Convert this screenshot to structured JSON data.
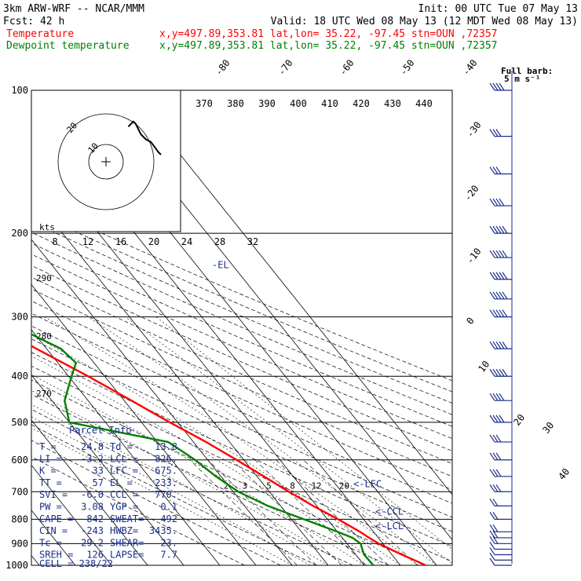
{
  "header": {
    "line1_left": "3km ARW-WRF -- NCAR/MMM",
    "line1_right": "Init: 00 UTC Tue 07 May 13",
    "line2_left": "Fcst:   42 h",
    "line2_right": "Valid: 18 UTC Wed 08 May 13 (12 MDT Wed 08 May 13)",
    "legend": [
      {
        "name": "Temperature",
        "info": "x,y=497.89,353.81   lat,lon= 35.22, -97.45  stn=OUN ,72357",
        "color": "#ff0000"
      },
      {
        "name": "Dewpoint temperature",
        "info": "x,y=497.89,353.81   lat,lon= 35.22, -97.45  stn=OUN ,72357",
        "color": "#008000"
      }
    ]
  },
  "barb_key": {
    "title": "Full barb:",
    "value": "5 m s⁻¹"
  },
  "hodograph": {
    "units_label": "kts",
    "ring_labels": [
      "20",
      "10"
    ]
  },
  "parcel_info": {
    "title": "Parcel Info",
    "rows": [
      [
        "T =",
        "24.8",
        "Td =",
        "13.8"
      ],
      [
        "LI =",
        "-3.2",
        "LCL =",
        "826."
      ],
      [
        "K =",
        "33",
        "LFC =",
        "675."
      ],
      [
        "TT =",
        "57",
        "EL =",
        "233."
      ],
      [
        "SVI =",
        "-6.0",
        "CCL =",
        "770."
      ],
      [
        "PW =",
        "3.08",
        "YGP =",
        "0.1"
      ],
      [
        "CAPE =",
        "842",
        "SWEAT=",
        "492"
      ],
      [
        "CIN =",
        "-243",
        "HWBZ=",
        "3435."
      ],
      [
        "Tc =",
        "29.2",
        "SHEAR=",
        "23."
      ],
      [
        "SREH =",
        "126",
        "LAPSE=",
        "7.7"
      ]
    ],
    "cell": "CELL = 238/22"
  },
  "level_markers": [
    {
      "label": "-EL",
      "p": 233
    },
    {
      "label": "<-LFC",
      "p": 675
    },
    {
      "label": "<-CCL",
      "p": 770
    },
    {
      "label": "<-LCL",
      "p": 826
    }
  ],
  "colors": {
    "temperature": "#ff0000",
    "dewpoint": "#008000",
    "panel": "#1a2e8a",
    "dry_adiabat": "#000000",
    "isotherm": "#000000"
  },
  "chart_data": {
    "type": "line",
    "title": "",
    "pressure_levels": [
      "100",
      "200",
      "300",
      "400",
      "500",
      "600",
      "700",
      "800",
      "900",
      "1000"
    ],
    "isotherm_labels": [
      "-80",
      "-70",
      "-60",
      "-50",
      "-40",
      "-30",
      "-20",
      "-10",
      "0",
      "10",
      "20",
      "30",
      "40"
    ],
    "theta_labels_top": [
      "370",
      "380",
      "390",
      "400",
      "410",
      "420",
      "430",
      "440"
    ],
    "theta_labels_left": [
      "290",
      "280",
      "270"
    ],
    "mixing_ratio_labels": [
      "2",
      "3",
      "5",
      "8",
      "12",
      "20"
    ],
    "hodograph_speed_labels": [
      "8",
      "12",
      "16",
      "20",
      "24",
      "28",
      "32"
    ],
    "y_scale": "log-pressure",
    "ylim": [
      1000,
      100
    ],
    "series": [
      {
        "name": "Temperature",
        "p": [
          1000,
          950,
          925,
          900,
          875,
          850,
          800,
          750,
          700,
          650,
          600,
          550,
          500,
          450,
          400,
          350,
          300,
          275,
          250,
          225,
          200,
          175,
          150,
          125,
          100
        ],
        "t": [
          27.0,
          22.8,
          20.8,
          18.8,
          17.4,
          16.2,
          13.0,
          9.0,
          5.4,
          1.9,
          -2.0,
          -6.5,
          -12.2,
          -18.0,
          -24.6,
          -32.8,
          -41.5,
          -47.0,
          -52.5,
          -57.8,
          -58.5,
          -59.0,
          -59.5,
          -60.5,
          -61.0
        ]
      },
      {
        "name": "Dewpoint temperature",
        "p": [
          1000,
          950,
          925,
          900,
          875,
          850,
          800,
          750,
          700,
          650,
          600,
          550,
          500,
          450,
          400,
          375,
          350,
          300,
          250,
          200,
          175,
          150,
          125,
          100
        ],
        "t": [
          12.5,
          12.3,
          13.0,
          13.8,
          12.8,
          10.0,
          3.5,
          -3.5,
          -8.6,
          -11.4,
          -13.5,
          -17.0,
          -40.0,
          -36.5,
          -29.2,
          -25.0,
          -26.0,
          -37.0,
          -49.0,
          -62.0,
          -70.0,
          -80.0,
          -79.0,
          -77.0
        ]
      }
    ],
    "hodograph_u": [
      0.0,
      1.0,
      2.5,
      4.0,
      6.0,
      8.0,
      9.0,
      10.0,
      11.0,
      12.0,
      13.0
    ],
    "hodograph_v": [
      0.0,
      0.5,
      1.5,
      2.5,
      3.0,
      4.0,
      5.0,
      6.0,
      6.5,
      6.0,
      5.5
    ],
    "wind_barbs": {
      "p": [
        1000,
        975,
        950,
        925,
        900,
        875,
        850,
        800,
        750,
        700,
        650,
        600,
        550,
        500,
        450,
        400,
        350,
        300,
        275,
        250,
        225,
        200,
        175,
        150,
        125,
        100
      ],
      "speed_ms": [
        5,
        7,
        8,
        9,
        10,
        11,
        12,
        13,
        14,
        15,
        16,
        17,
        18,
        20,
        23,
        25,
        27,
        30,
        32,
        30,
        28,
        25,
        20,
        15,
        15,
        20
      ]
    }
  }
}
